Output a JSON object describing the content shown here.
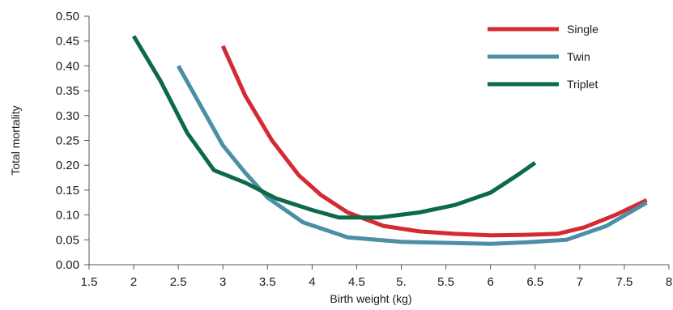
{
  "chart_data": {
    "type": "line",
    "title": "",
    "xlabel": "Birth weight (kg)",
    "ylabel": "Total mortality",
    "xlim": [
      1.5,
      8
    ],
    "ylim": [
      0,
      0.5
    ],
    "x_ticks": [
      {
        "value": 1.5,
        "label": "1.5"
      },
      {
        "value": 2,
        "label": "2"
      },
      {
        "value": 2.5,
        "label": "2.5"
      },
      {
        "value": 3,
        "label": "3"
      },
      {
        "value": 3.5,
        "label": "3.5"
      },
      {
        "value": 4,
        "label": "4"
      },
      {
        "value": 4.5,
        "label": "4.5"
      },
      {
        "value": 5,
        "label": "5."
      },
      {
        "value": 5.5,
        "label": "5.5"
      },
      {
        "value": 6,
        "label": "6"
      },
      {
        "value": 6.5,
        "label": "6.5"
      },
      {
        "value": 7,
        "label": "7"
      },
      {
        "value": 7.5,
        "label": "7.5"
      },
      {
        "value": 8,
        "label": "8"
      }
    ],
    "y_ticks": [
      {
        "value": 0,
        "label": "0.00"
      },
      {
        "value": 0.05,
        "label": "0.05"
      },
      {
        "value": 0.1,
        "label": "0.10"
      },
      {
        "value": 0.15,
        "label": "0.15"
      },
      {
        "value": 0.2,
        "label": "0.20"
      },
      {
        "value": 0.25,
        "label": "0.25"
      },
      {
        "value": 0.3,
        "label": "0.30"
      },
      {
        "value": 0.35,
        "label": "0.35"
      },
      {
        "value": 0.4,
        "label": "0.40"
      },
      {
        "value": 0.45,
        "label": "0.45"
      },
      {
        "value": 0.5,
        "label": "0.50"
      }
    ],
    "grid": false,
    "legend_position": "top-right",
    "series": [
      {
        "name": "Single",
        "color": "#d42a32",
        "x": [
          3.0,
          3.25,
          3.55,
          3.85,
          4.1,
          4.4,
          4.8,
          5.2,
          5.6,
          6.0,
          6.35,
          6.75,
          7.05,
          7.4,
          7.75
        ],
        "y": [
          0.44,
          0.34,
          0.25,
          0.18,
          0.14,
          0.105,
          0.078,
          0.067,
          0.062,
          0.059,
          0.06,
          0.062,
          0.075,
          0.1,
          0.13
        ]
      },
      {
        "name": "Twin",
        "color": "#4b8ea5",
        "x": [
          2.5,
          2.75,
          3.0,
          3.25,
          3.5,
          3.9,
          4.4,
          5.0,
          5.5,
          6.0,
          6.4,
          6.85,
          7.3,
          7.75
        ],
        "y": [
          0.4,
          0.32,
          0.24,
          0.185,
          0.135,
          0.085,
          0.055,
          0.046,
          0.044,
          0.042,
          0.045,
          0.05,
          0.078,
          0.125
        ]
      },
      {
        "name": "Triplet",
        "color": "#0c6b46",
        "x": [
          2.0,
          2.3,
          2.6,
          2.9,
          3.25,
          3.6,
          4.0,
          4.3,
          4.75,
          5.2,
          5.6,
          6.0,
          6.3,
          6.5
        ],
        "y": [
          0.46,
          0.37,
          0.265,
          0.19,
          0.165,
          0.133,
          0.11,
          0.095,
          0.095,
          0.105,
          0.12,
          0.145,
          0.18,
          0.205
        ]
      }
    ]
  }
}
